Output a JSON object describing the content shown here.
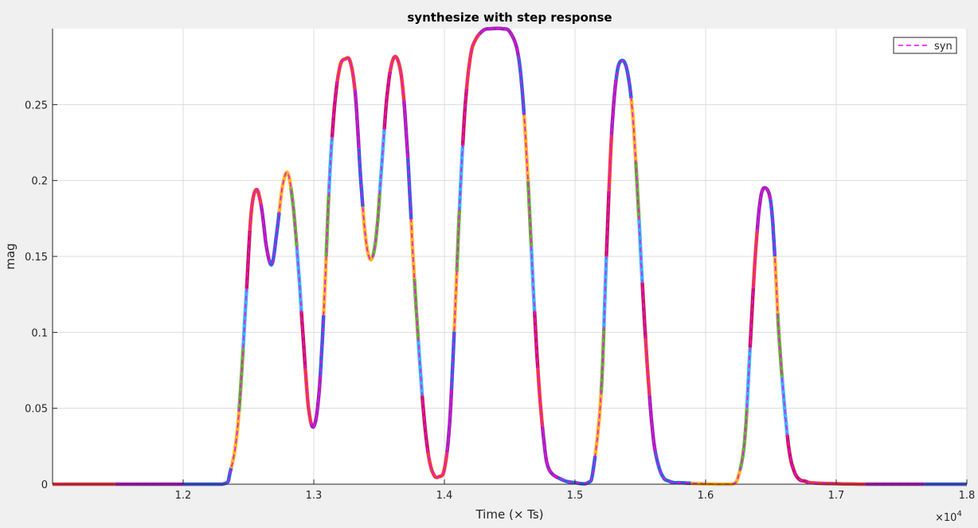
{
  "chart_data": {
    "type": "line",
    "title": "synthesize with step response",
    "xlabel": "Time (× Ts)",
    "ylabel": "mag",
    "x_multiplier": "×10",
    "x_multiplier_exp": "4",
    "xlim": [
      1.1,
      1.8
    ],
    "ylim": [
      0,
      0.3
    ],
    "xticks": [
      "1.2",
      "1.3",
      "1.4",
      "1.5",
      "1.6",
      "1.7",
      "1.8"
    ],
    "yticks": [
      "0",
      "0.05",
      "0.1",
      "0.15",
      "0.2",
      "0.25"
    ],
    "grid": true,
    "legend": {
      "position": "top-right",
      "entries": [
        "syn"
      ]
    },
    "series": [
      {
        "name": "syn",
        "style": "dashed",
        "color": "#ff00ff",
        "x": [
          1.1,
          1.2,
          1.23,
          1.236,
          1.242,
          1.248,
          1.252,
          1.256,
          1.26,
          1.264,
          1.268,
          1.272,
          1.276,
          1.28,
          1.284,
          1.288,
          1.292,
          1.296,
          1.3,
          1.304,
          1.308,
          1.312,
          1.316,
          1.32,
          1.324,
          1.328,
          1.332,
          1.336,
          1.34,
          1.344,
          1.348,
          1.352,
          1.356,
          1.36,
          1.364,
          1.368,
          1.372,
          1.376,
          1.38,
          1.384,
          1.388,
          1.392,
          1.396,
          1.4,
          1.404,
          1.408,
          1.412,
          1.416,
          1.42,
          1.424,
          1.43,
          1.436,
          1.444,
          1.45,
          1.456,
          1.46,
          1.464,
          1.468,
          1.472,
          1.476,
          1.48,
          1.49,
          1.5,
          1.51,
          1.514,
          1.52,
          1.524,
          1.528,
          1.532,
          1.536,
          1.54,
          1.544,
          1.548,
          1.552,
          1.556,
          1.56,
          1.564,
          1.568,
          1.572,
          1.576,
          1.58,
          1.59,
          1.6,
          1.61,
          1.62,
          1.625,
          1.63,
          1.634,
          1.638,
          1.642,
          1.646,
          1.65,
          1.653,
          1.656,
          1.66,
          1.664,
          1.668,
          1.672,
          1.676,
          1.68,
          1.69,
          1.7,
          1.72,
          1.74,
          1.76,
          1.78,
          1.8
        ],
        "y": [
          0,
          0,
          0,
          0.008,
          0.04,
          0.12,
          0.178,
          0.194,
          0.182,
          0.155,
          0.145,
          0.168,
          0.196,
          0.205,
          0.185,
          0.145,
          0.095,
          0.05,
          0.038,
          0.06,
          0.12,
          0.2,
          0.25,
          0.275,
          0.28,
          0.278,
          0.255,
          0.2,
          0.16,
          0.148,
          0.165,
          0.21,
          0.255,
          0.278,
          0.28,
          0.262,
          0.215,
          0.15,
          0.095,
          0.048,
          0.018,
          0.006,
          0.005,
          0.01,
          0.04,
          0.11,
          0.19,
          0.25,
          0.282,
          0.293,
          0.299,
          0.3,
          0.3,
          0.298,
          0.285,
          0.255,
          0.2,
          0.13,
          0.07,
          0.03,
          0.01,
          0.003,
          0.001,
          0.001,
          0.01,
          0.06,
          0.15,
          0.23,
          0.27,
          0.279,
          0.272,
          0.245,
          0.19,
          0.125,
          0.07,
          0.03,
          0.012,
          0.004,
          0.002,
          0.001,
          0.001,
          0.0005,
          0.0002,
          0,
          0,
          0.005,
          0.03,
          0.09,
          0.15,
          0.188,
          0.195,
          0.185,
          0.15,
          0.1,
          0.055,
          0.022,
          0.008,
          0.003,
          0.002,
          0.001,
          0.0005,
          0.0003,
          0,
          0,
          0,
          0,
          0
        ]
      }
    ]
  }
}
